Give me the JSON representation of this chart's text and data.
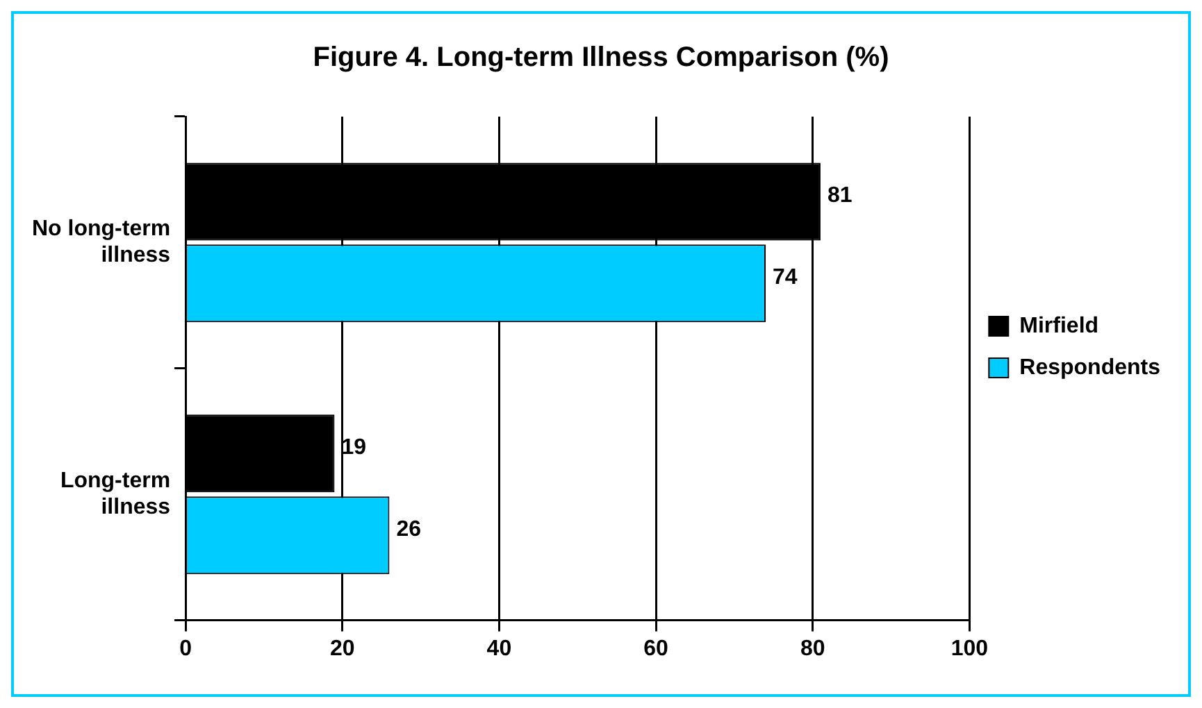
{
  "chart_data": {
    "type": "bar",
    "orientation": "horizontal",
    "title": "Figure 4. Long-term Illness Comparison (%)",
    "categories": [
      "No long-term illness",
      "Long-term illness"
    ],
    "series": [
      {
        "name": "Mirfield",
        "color": "#000000",
        "values": [
          81,
          19
        ]
      },
      {
        "name": "Respondents",
        "color": "#00ccff",
        "values": [
          74,
          26
        ]
      }
    ],
    "xlim": [
      0,
      100
    ],
    "xticks": [
      0,
      20,
      40,
      60,
      80,
      100
    ],
    "grid": "x",
    "legend": "right",
    "data_labels": true
  }
}
